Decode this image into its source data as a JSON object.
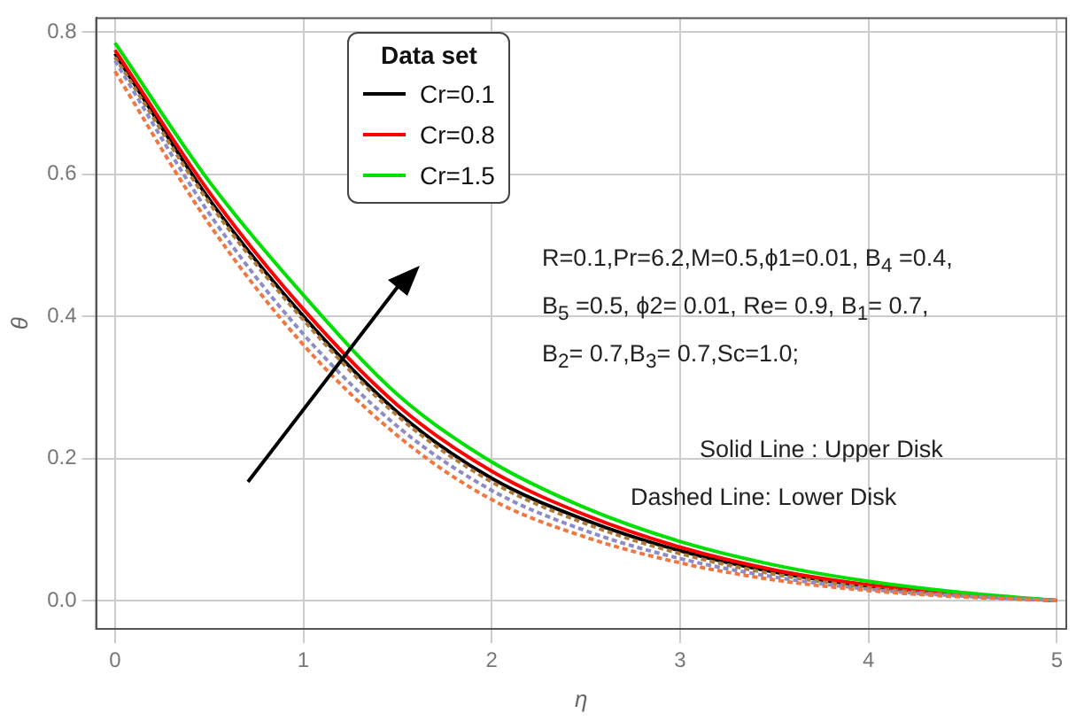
{
  "chart_data": {
    "type": "line",
    "xlabel": "η",
    "ylabel": "θ",
    "legend_title": "Data set",
    "legend": "top",
    "x": [
      0,
      0.5,
      1,
      1.5,
      2,
      2.5,
      3,
      3.5,
      4,
      4.5,
      5
    ],
    "xlim": [
      -0.1,
      5.05
    ],
    "xticks": [
      0,
      1,
      2,
      3,
      4,
      5
    ],
    "ylim": [
      -0.04,
      0.82
    ],
    "yticks": [
      {
        "value": 0,
        "label": "0.0"
      },
      {
        "value": 0.2,
        "label": "0.2"
      },
      {
        "value": 0.4,
        "label": "0.4"
      },
      {
        "value": 0.6,
        "label": "0.6"
      },
      {
        "value": 0.8,
        "label": "0.8"
      }
    ],
    "grid": true,
    "marker": "none",
    "series": [
      {
        "name": "Cr=0.1",
        "color": "#000000",
        "line_style": "solid",
        "values": [
          0.77,
          0.565,
          0.4,
          0.265,
          0.172,
          0.113,
          0.07,
          0.04,
          0.02,
          0.008,
          0
        ]
      },
      {
        "name": "Cr=0.8",
        "color": "#ff0000",
        "line_style": "solid",
        "values": [
          0.775,
          0.575,
          0.41,
          0.275,
          0.182,
          0.12,
          0.075,
          0.043,
          0.022,
          0.009,
          0
        ]
      },
      {
        "name": "Cr=1.5",
        "color": "#00e000",
        "line_style": "solid",
        "values": [
          0.785,
          0.59,
          0.43,
          0.29,
          0.195,
          0.13,
          0.083,
          0.05,
          0.027,
          0.011,
          0
        ]
      },
      {
        "color": "#b07a3a",
        "line_style": "dashed",
        "values": [
          0.765,
          0.56,
          0.395,
          0.26,
          0.167,
          0.108,
          0.066,
          0.037,
          0.018,
          0.007,
          0
        ]
      },
      {
        "color": "#8c8cc8",
        "line_style": "dashed",
        "values": [
          0.76,
          0.545,
          0.375,
          0.245,
          0.155,
          0.098,
          0.059,
          0.033,
          0.016,
          0.006,
          0
        ]
      },
      {
        "color": "#f07840",
        "line_style": "dashed",
        "values": [
          0.745,
          0.53,
          0.36,
          0.232,
          0.142,
          0.089,
          0.053,
          0.029,
          0.014,
          0.005,
          0
        ]
      }
    ],
    "annotations": [
      "R=0.1,Pr=6.2,M=0.5,ϕ1=0.01, B$_{4}$ =0.4,",
      "B$_{5}$ =0.5, ϕ2= 0.01, Re= 0.9, B$_{1}$= 0.7,",
      "B$_{2}$= 0.7,B$_{3}$= 0.7,Sc=1.0;",
      "Solid Line : Upper Disk",
      "Dashed Line: Lower Disk"
    ]
  }
}
